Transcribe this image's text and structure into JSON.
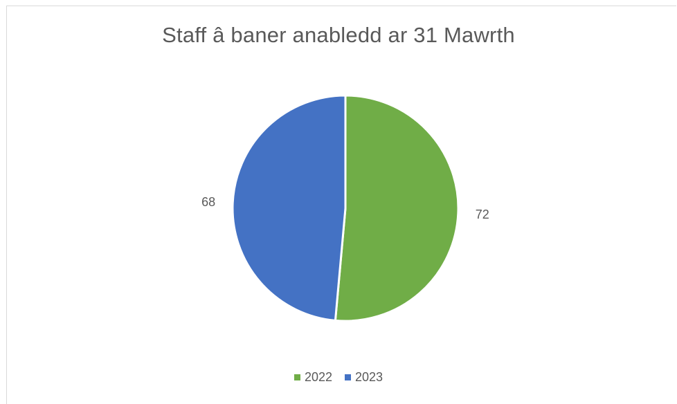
{
  "chart_data": {
    "type": "pie",
    "title": "Staff â baner anabledd ar 31 Mawrth",
    "categories": [
      "2022",
      "2023"
    ],
    "values": [
      72,
      68
    ],
    "colors": [
      "#70AD47",
      "#4472C4"
    ],
    "legend_position": "bottom",
    "data_labels": [
      "72",
      "68"
    ]
  }
}
